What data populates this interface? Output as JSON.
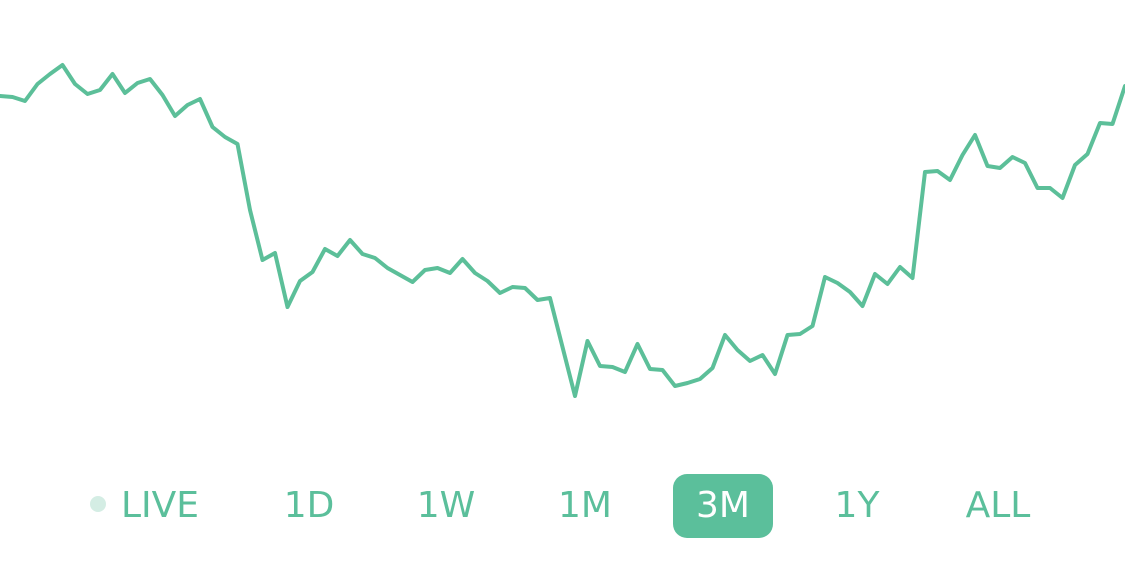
{
  "chart_data": {
    "type": "line",
    "color": "#5cbf99",
    "values": [
      404,
      403,
      399,
      416,
      426,
      435,
      416,
      406,
      410,
      426,
      407,
      417,
      421,
      405,
      384,
      395,
      401,
      373,
      363,
      356,
      290,
      240,
      247,
      193,
      219,
      228,
      251,
      244,
      260,
      246,
      242,
      232,
      225,
      218,
      230,
      232,
      227,
      241,
      227,
      219,
      207,
      213,
      212,
      200,
      202,
      153,
      104,
      159,
      134,
      133,
      128,
      156,
      131,
      130,
      114,
      117,
      121,
      132,
      165,
      150,
      139,
      145,
      126,
      165,
      166,
      174,
      223,
      217,
      208,
      194,
      226,
      216,
      233,
      222,
      328,
      329,
      320,
      345,
      365,
      334,
      332,
      343,
      337,
      312,
      312,
      302,
      335,
      346,
      377,
      376,
      414
    ]
  },
  "controls": {
    "live": "LIVE",
    "ranges": [
      "1D",
      "1W",
      "1M",
      "3M",
      "1Y",
      "ALL"
    ],
    "selected": 3,
    "accent": "#5bbf9b",
    "live_dot": "#d4ede4"
  }
}
